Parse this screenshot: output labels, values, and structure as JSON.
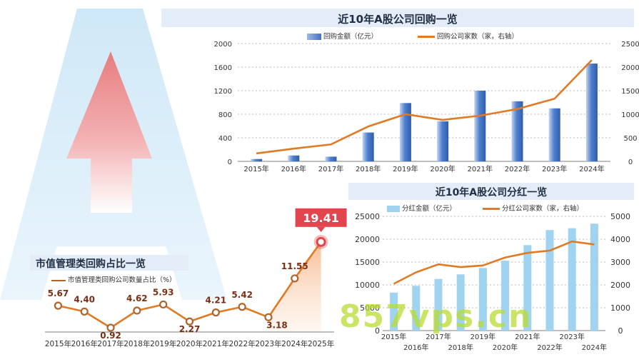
{
  "colors": {
    "bar_blue": "#4472c4",
    "bar_light": "#9fd3ef",
    "line_orange": "#e07a24",
    "line_brown": "#b0632a",
    "title_bg": "#e4edf7",
    "highlight_red": "#e2454d",
    "watermark": "#b9dc33"
  },
  "watermark_text": "857vps.cn",
  "chart_data": [
    {
      "type": "bar",
      "title": "近10年A股公司回购一览",
      "categories": [
        "2015年",
        "2016年",
        "2017年",
        "2018年",
        "2019年",
        "2020年",
        "2021年",
        "2022年",
        "2023年",
        "2024年"
      ],
      "series": [
        {
          "name": "回购金额（亿元）",
          "type": "bar",
          "axis": "left",
          "values": [
            40,
            100,
            80,
            490,
            990,
            680,
            1200,
            1020,
            900,
            1660
          ]
        },
        {
          "name": "回购公司家数（家，右轴）",
          "type": "line",
          "axis": "right",
          "values": [
            170,
            270,
            360,
            740,
            1000,
            880,
            970,
            1110,
            1330,
            2150
          ]
        }
      ],
      "ylim": [
        0,
        2000
      ],
      "y_ticks": [
        "0",
        "400",
        "800",
        "1200",
        "1600",
        "2000"
      ],
      "y2lim": [
        0,
        2500
      ],
      "y2_ticks": [
        "0",
        "500",
        "1000",
        "1500",
        "2000",
        "2500"
      ],
      "legend": "top"
    },
    {
      "type": "bar",
      "title": "近10年A股公司分红一览",
      "categories": [
        "2015年",
        "2016年",
        "2017年",
        "2018年",
        "2019年",
        "2020年",
        "2021年",
        "2022年",
        "2023年",
        "2024年"
      ],
      "series": [
        {
          "name": "分红金额（亿元）",
          "type": "bar",
          "axis": "left",
          "values": [
            8300,
            9800,
            11300,
            12300,
            13700,
            15300,
            18700,
            22000,
            22400,
            23400
          ]
        },
        {
          "name": "分红公司家数（家，右轴）",
          "type": "line",
          "axis": "right",
          "values": [
            2050,
            2550,
            2900,
            2780,
            2850,
            3200,
            3400,
            3500,
            3900,
            3770
          ]
        }
      ],
      "ylim": [
        0,
        25000
      ],
      "y_ticks": [
        "0",
        "5000",
        "10000",
        "15000",
        "20000",
        "25000"
      ],
      "y2lim": [
        0,
        5000
      ],
      "y2_ticks": [
        "0",
        "1000",
        "2000",
        "3000",
        "4000",
        "5000"
      ],
      "legend": "top"
    },
    {
      "type": "line",
      "title": "市值管理类回购占比一览",
      "categories": [
        "2015年",
        "2016年",
        "2017年",
        "2018年",
        "2019年",
        "2020年",
        "2021年",
        "2022年",
        "2023年",
        "2024年",
        "2025年"
      ],
      "series": [
        {
          "name": "市值管理类回购公司数量占比（%）",
          "values": [
            5.67,
            4.4,
            0.92,
            4.62,
            5.93,
            2.27,
            4.21,
            5.42,
            3.18,
            11.55,
            19.41
          ]
        }
      ],
      "data_labels": [
        "5.67",
        "4.40",
        "0.92",
        "4.62",
        "5.93",
        "2.27",
        "4.21",
        "5.42",
        "3.18",
        "11.55",
        "19.41"
      ],
      "ylim": [
        0,
        20
      ],
      "highlight": "19.41",
      "legend": "top-left"
    }
  ]
}
